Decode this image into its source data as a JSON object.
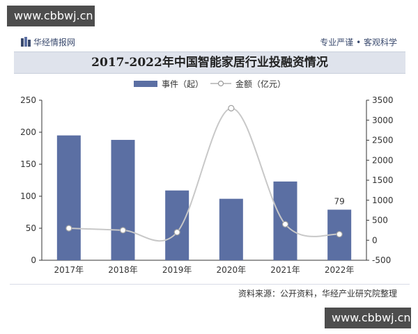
{
  "watermark": {
    "top": "www.cbbwj.cn",
    "bottom": "www.cbbwj.cn"
  },
  "header": {
    "brand": "华经情报网",
    "slogan": "专业严谨 • 客观科学"
  },
  "source": "资料来源：公开资料，华经产业研究院整理",
  "colors": {
    "bar": "#5b6fa3",
    "line": "#c8c8c8",
    "title_bg": "#dfe3ec"
  },
  "chart_data": {
    "type": "bar",
    "title": "2017-2022年中国智能家居行业投融资情况",
    "categories": [
      "2017年",
      "2018年",
      "2019年",
      "2020年",
      "2021年",
      "2022年"
    ],
    "series": [
      {
        "name": "事件（起）",
        "type": "bar",
        "axis": "left",
        "values": [
          195,
          188,
          109,
          96,
          123,
          79
        ]
      },
      {
        "name": "金额（亿元）",
        "type": "line",
        "axis": "right",
        "values": [
          300,
          250,
          200,
          3300,
          400,
          150
        ]
      }
    ],
    "data_labels": [
      {
        "index": 5,
        "text": "79"
      }
    ],
    "y_left": {
      "min": 0,
      "max": 250,
      "ticks": [
        "0",
        "50",
        "100",
        "150",
        "200",
        "250"
      ]
    },
    "y_right": {
      "min": -500,
      "max": 3500,
      "ticks": [
        "-500",
        "0",
        "500",
        "1000",
        "1500",
        "2000",
        "2500",
        "3000",
        "3500"
      ]
    },
    "legend_position": "top-center",
    "grid": false
  }
}
